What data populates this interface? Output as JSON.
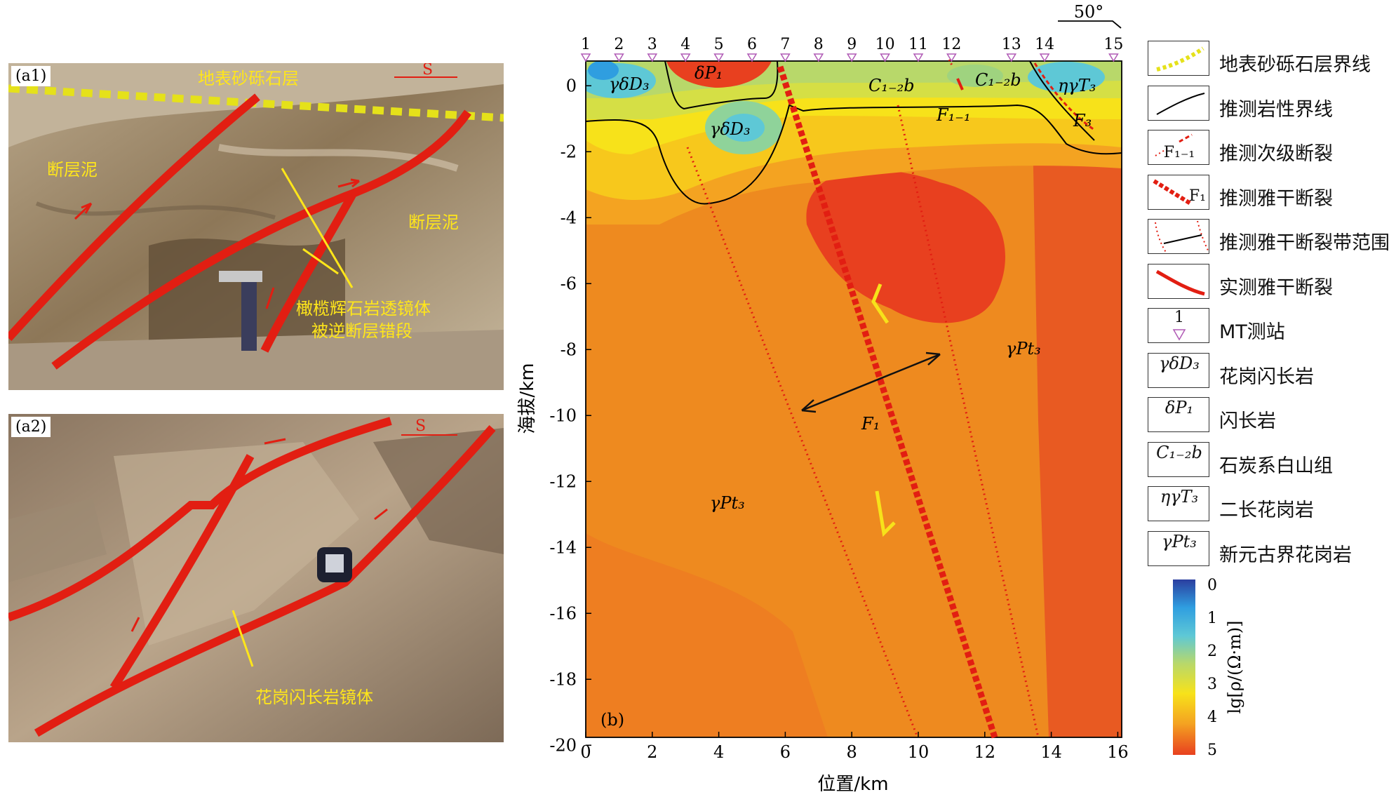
{
  "photo_a1": {
    "tag": "(a1)",
    "labels": [
      "地表砂砾石层",
      "断层泥",
      "断层泥",
      "橄榄辉石岩透镜体",
      "被逆断层错段"
    ],
    "direction": "S"
  },
  "photo_a2": {
    "tag": "(a2)",
    "labels": [
      "花岗闪长岩镜体"
    ],
    "direction": "S"
  },
  "section": {
    "panel_tag": "(b)",
    "dip_label": "50°",
    "ylabel": "海拔/km",
    "xlabel": "位置/km",
    "x_ticks": [
      "0",
      "2",
      "4",
      "6",
      "8",
      "10",
      "12",
      "14",
      "16"
    ],
    "y_ticks": [
      "0",
      "-2",
      "-4",
      "-6",
      "-8",
      "-10",
      "-12",
      "-14",
      "-16",
      "-18",
      "-20"
    ],
    "stations": [
      "1",
      "2",
      "3",
      "4",
      "5",
      "6",
      "7",
      "8",
      "9",
      "10",
      "11",
      "12",
      "13",
      "14",
      "15"
    ],
    "units": {
      "gdD3_a": "γδD₃",
      "dP1": "δP₁",
      "gdD3_b": "γδD₃",
      "C12b_a": "C₁₋₂b",
      "F11": "F₁₋₁",
      "C12b_b": "C₁₋₂b",
      "ngT3": "ηγT₃",
      "F3": "F₃",
      "gPt3_a": "γPt₃",
      "gPt3_b": "γPt₃",
      "F1": "F₁"
    },
    "colorbar": {
      "label": "lg[ρ/(Ω·m)]",
      "ticks": [
        "0",
        "1",
        "2",
        "3",
        "4",
        "5"
      ],
      "colors": [
        "#2b3e9f",
        "#2f9ee0",
        "#5ec8d6",
        "#b8d86a",
        "#f7e21a",
        "#f4a321",
        "#e8401f"
      ]
    }
  },
  "legend": [
    {
      "symbol": "gravel",
      "label": "地表砂砾石层界线"
    },
    {
      "symbol": "litho",
      "label": "推测岩性界线"
    },
    {
      "symbol": "F1-1",
      "text": "F₁₋₁",
      "label": "推测次级断裂"
    },
    {
      "symbol": "F1",
      "text": "F₁",
      "label": "推测雅干断裂"
    },
    {
      "symbol": "zone",
      "label": "推测雅干断裂带范围"
    },
    {
      "symbol": "measured",
      "label": "实测雅干断裂"
    },
    {
      "symbol": "station",
      "text": "1",
      "label": "MT测站"
    },
    {
      "symbol": "unit",
      "text": "γδD₃",
      "label": "花岗闪长岩"
    },
    {
      "symbol": "unit",
      "text": "δP₁",
      "label": "闪长岩"
    },
    {
      "symbol": "unit",
      "text": "C₁₋₂b",
      "label": "石炭系白山组"
    },
    {
      "symbol": "unit",
      "text": "ηγT₃",
      "label": "二长花岗岩"
    },
    {
      "symbol": "unit",
      "text": "γPt₃",
      "label": "新元古界花岗岩"
    }
  ]
}
